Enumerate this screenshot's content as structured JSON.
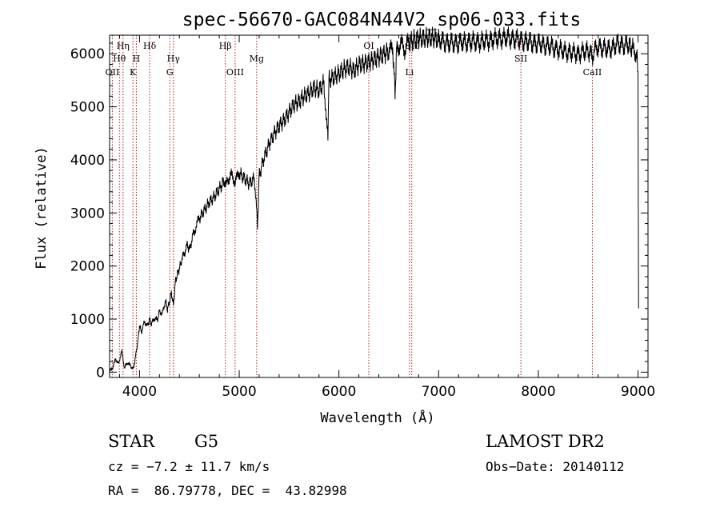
{
  "chart_data": {
    "type": "line",
    "title": "spec-56670-GAC084N44V2_sp06-033.fits",
    "xlabel": "Wavelength (Å)",
    "ylabel": "Flux (relative)",
    "xlim": [
      3700,
      9100
    ],
    "ylim": [
      -100,
      6350
    ],
    "xticks": [
      4000,
      5000,
      6000,
      7000,
      8000,
      9000
    ],
    "yticks": [
      0,
      1000,
      2000,
      3000,
      4000,
      5000,
      6000
    ],
    "grid": false,
    "series": [
      {
        "color": "#000000",
        "points": [
          [
            3700,
            20
          ],
          [
            3730,
            80
          ],
          [
            3760,
            250
          ],
          [
            3790,
            150
          ],
          [
            3820,
            400
          ],
          [
            3850,
            80
          ],
          [
            3880,
            180
          ],
          [
            3910,
            120
          ],
          [
            3940,
            60
          ],
          [
            3960,
            300
          ],
          [
            3980,
            520
          ],
          [
            4000,
            880
          ],
          [
            4020,
            760
          ],
          [
            4050,
            950
          ],
          [
            4080,
            870
          ],
          [
            4100,
            1000
          ],
          [
            4120,
            900
          ],
          [
            4150,
            1020
          ],
          [
            4180,
            980
          ],
          [
            4200,
            1150
          ],
          [
            4230,
            1100
          ],
          [
            4260,
            1350
          ],
          [
            4280,
            1180
          ],
          [
            4300,
            1320
          ],
          [
            4320,
            1500
          ],
          [
            4340,
            1250
          ],
          [
            4360,
            1700
          ],
          [
            4380,
            1850
          ],
          [
            4400,
            1950
          ],
          [
            4420,
            2100
          ],
          [
            4450,
            2250
          ],
          [
            4480,
            2400
          ],
          [
            4500,
            2300
          ],
          [
            4530,
            2550
          ],
          [
            4560,
            2700
          ],
          [
            4600,
            2900
          ],
          [
            4650,
            3050
          ],
          [
            4700,
            3200
          ],
          [
            4750,
            3300
          ],
          [
            4800,
            3450
          ],
          [
            4850,
            3600
          ],
          [
            4861,
            3450
          ],
          [
            4880,
            3650
          ],
          [
            4920,
            3700
          ],
          [
            4960,
            3600
          ],
          [
            5000,
            3750
          ],
          [
            5050,
            3650
          ],
          [
            5100,
            3550
          ],
          [
            5150,
            3650
          ],
          [
            5172,
            3250
          ],
          [
            5183,
            2700
          ],
          [
            5200,
            3700
          ],
          [
            5250,
            4050
          ],
          [
            5300,
            4300
          ],
          [
            5350,
            4500
          ],
          [
            5400,
            4650
          ],
          [
            5450,
            4750
          ],
          [
            5500,
            4900
          ],
          [
            5550,
            5050
          ],
          [
            5600,
            5100
          ],
          [
            5650,
            5200
          ],
          [
            5700,
            5250
          ],
          [
            5750,
            5350
          ],
          [
            5800,
            5300
          ],
          [
            5850,
            5450
          ],
          [
            5890,
            4350
          ],
          [
            5900,
            5500
          ],
          [
            5950,
            5550
          ],
          [
            6000,
            5620
          ],
          [
            6050,
            5700
          ],
          [
            6100,
            5750
          ],
          [
            6150,
            5680
          ],
          [
            6200,
            5800
          ],
          [
            6250,
            5820
          ],
          [
            6300,
            5850
          ],
          [
            6350,
            5900
          ],
          [
            6400,
            5950
          ],
          [
            6450,
            6000
          ],
          [
            6500,
            6050
          ],
          [
            6540,
            6100
          ],
          [
            6563,
            5250
          ],
          [
            6580,
            6100
          ],
          [
            6620,
            6180
          ],
          [
            6660,
            6100
          ],
          [
            6700,
            6200
          ],
          [
            6750,
            6250
          ],
          [
            6800,
            6270
          ],
          [
            6850,
            6280
          ],
          [
            6900,
            6290
          ],
          [
            6950,
            6290
          ],
          [
            7000,
            6260
          ],
          [
            7100,
            6200
          ],
          [
            7200,
            6200
          ],
          [
            7300,
            6230
          ],
          [
            7400,
            6220
          ],
          [
            7500,
            6250
          ],
          [
            7600,
            6290
          ],
          [
            7700,
            6300
          ],
          [
            7800,
            6260
          ],
          [
            7900,
            6220
          ],
          [
            8000,
            6190
          ],
          [
            8100,
            6150
          ],
          [
            8200,
            6080
          ],
          [
            8300,
            6030
          ],
          [
            8400,
            6000
          ],
          [
            8500,
            6060
          ],
          [
            8542,
            5980
          ],
          [
            8600,
            6140
          ],
          [
            8700,
            6080
          ],
          [
            8800,
            6180
          ],
          [
            8900,
            6160
          ],
          [
            8950,
            6080
          ],
          [
            8990,
            6000
          ],
          [
            9000,
            5600
          ],
          [
            9005,
            1200
          ]
        ]
      }
    ],
    "lines": [
      {
        "label": "OII",
        "x": 3727,
        "row": 3
      },
      {
        "label": "Hθ",
        "x": 3798,
        "row": 2
      },
      {
        "label": "Hη",
        "x": 3835,
        "row": 1
      },
      {
        "label": "K",
        "x": 3934,
        "row": 3
      },
      {
        "label": "H",
        "x": 3968,
        "row": 2
      },
      {
        "label": "Hδ",
        "x": 4102,
        "row": 1
      },
      {
        "label": "G",
        "x": 4304,
        "row": 3
      },
      {
        "label": "Hγ",
        "x": 4340,
        "row": 2
      },
      {
        "label": "Hβ",
        "x": 4861,
        "row": 1
      },
      {
        "label": "OIII",
        "x": 4959,
        "row": 3
      },
      {
        "label": "Mg",
        "x": 5175,
        "row": 2
      },
      {
        "label": "OI",
        "x": 6300,
        "row": 1
      },
      {
        "label": "Li",
        "x": 6708,
        "row": 3
      },
      {
        "label": "SII",
        "x": 6731,
        "row": 1
      },
      {
        "label": "SII",
        "x": 7825,
        "row": 2
      },
      {
        "label": "CaII",
        "x": 8542,
        "row": 3
      }
    ]
  },
  "info": {
    "class": "STAR",
    "subclass": "G5",
    "survey": "LAMOST DR2",
    "cz": "cz = −7.2 ± 11.7 km/s",
    "obs_date": "Obs−Date: 20140112",
    "coords": "RA =  86.79778, DEC =  43.82998"
  }
}
